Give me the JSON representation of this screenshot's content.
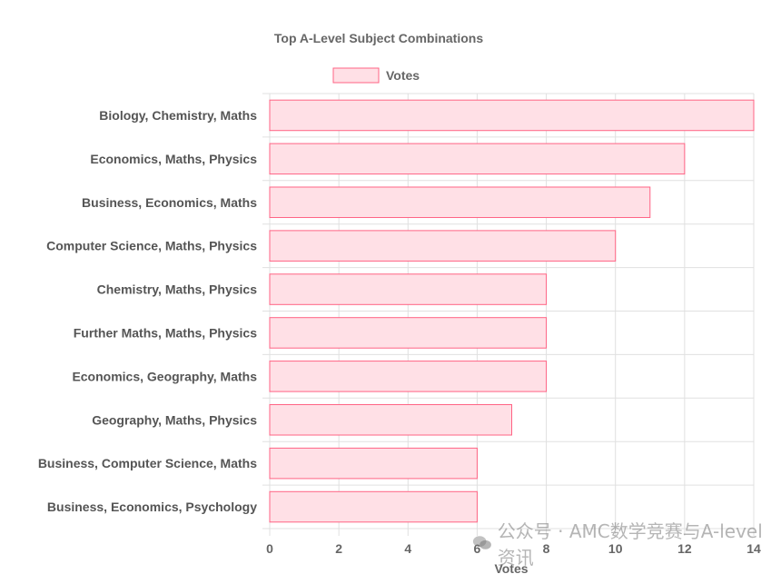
{
  "chart_data": {
    "type": "bar",
    "orientation": "horizontal",
    "title": "Top A-Level Subject Combinations",
    "categories": [
      "Biology, Chemistry, Maths",
      "Economics, Maths, Physics",
      "Business, Economics, Maths",
      "Computer Science, Maths, Physics",
      "Chemistry, Maths, Physics",
      "Further Maths, Maths, Physics",
      "Economics, Geography, Maths",
      "Geography, Maths, Physics",
      "Business, Computer Science, Maths",
      "Business, Economics, Psychology"
    ],
    "series": [
      {
        "name": "Votes",
        "values": [
          14,
          12,
          11,
          10,
          8,
          8,
          8,
          7,
          6,
          6
        ]
      }
    ],
    "xlabel": "Votes",
    "ylabel": "",
    "xlim": [
      0,
      14
    ],
    "xticks": [
      "0",
      "2",
      "4",
      "6",
      "8",
      "10",
      "12",
      "14"
    ],
    "legend_position": "top",
    "grid": true,
    "colors": {
      "bar_fill": "#ffe0e6",
      "bar_border": "#ff6384"
    }
  },
  "watermark": {
    "text": "公众号 · AMC数学竞赛与A-level资讯"
  }
}
